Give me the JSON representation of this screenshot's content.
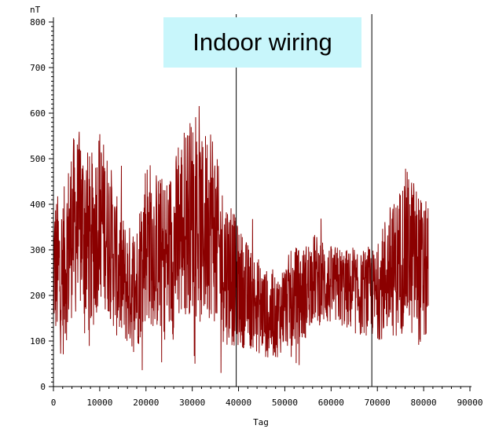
{
  "chart_data": {
    "type": "line",
    "title": "",
    "xlabel": "Tag",
    "ylabel": "nT",
    "xlim": [
      0,
      90000
    ],
    "ylim": [
      0,
      800
    ],
    "x_ticks": [
      "0",
      "10000",
      "20000",
      "30000",
      "40000",
      "50000",
      "60000",
      "70000",
      "80000",
      "90000"
    ],
    "y_ticks": [
      "0",
      "100",
      "200",
      "300",
      "400",
      "500",
      "600",
      "700",
      "800"
    ],
    "annotation": "Indoor wiring",
    "annotation_color": "#c8f6fb",
    "line_color": "#8b0000",
    "vertical_markers": [
      39500,
      68800
    ],
    "series": [
      {
        "x": [
          0,
          2000,
          4000,
          6000,
          8000,
          10000,
          12000,
          14000,
          16000,
          18000,
          20000,
          22000,
          24000,
          26000,
          28000,
          30000,
          32000,
          34000,
          36000,
          38000,
          40000,
          42000,
          44000,
          46000,
          48000,
          50000,
          52000,
          54000,
          56000,
          58000,
          60000,
          62000,
          64000,
          66000,
          68000,
          70000,
          72000,
          74000,
          76000,
          78000,
          80000,
          81000
        ],
        "values": [
          270,
          240,
          350,
          360,
          300,
          380,
          330,
          250,
          220,
          220,
          330,
          300,
          280,
          300,
          360,
          380,
          330,
          380,
          280,
          250,
          220,
          200,
          180,
          160,
          150,
          180,
          200,
          200,
          240,
          230,
          220,
          220,
          210,
          200,
          210,
          200,
          250,
          260,
          300,
          280,
          240,
          260
        ],
        "spread": [
          180,
          200,
          220,
          230,
          230,
          210,
          200,
          170,
          150,
          160,
          210,
          200,
          200,
          220,
          240,
          240,
          230,
          250,
          200,
          180,
          150,
          130,
          120,
          110,
          100,
          110,
          120,
          120,
          110,
          110,
          100,
          100,
          100,
          100,
          110,
          110,
          160,
          170,
          200,
          200,
          180,
          170
        ]
      }
    ]
  }
}
